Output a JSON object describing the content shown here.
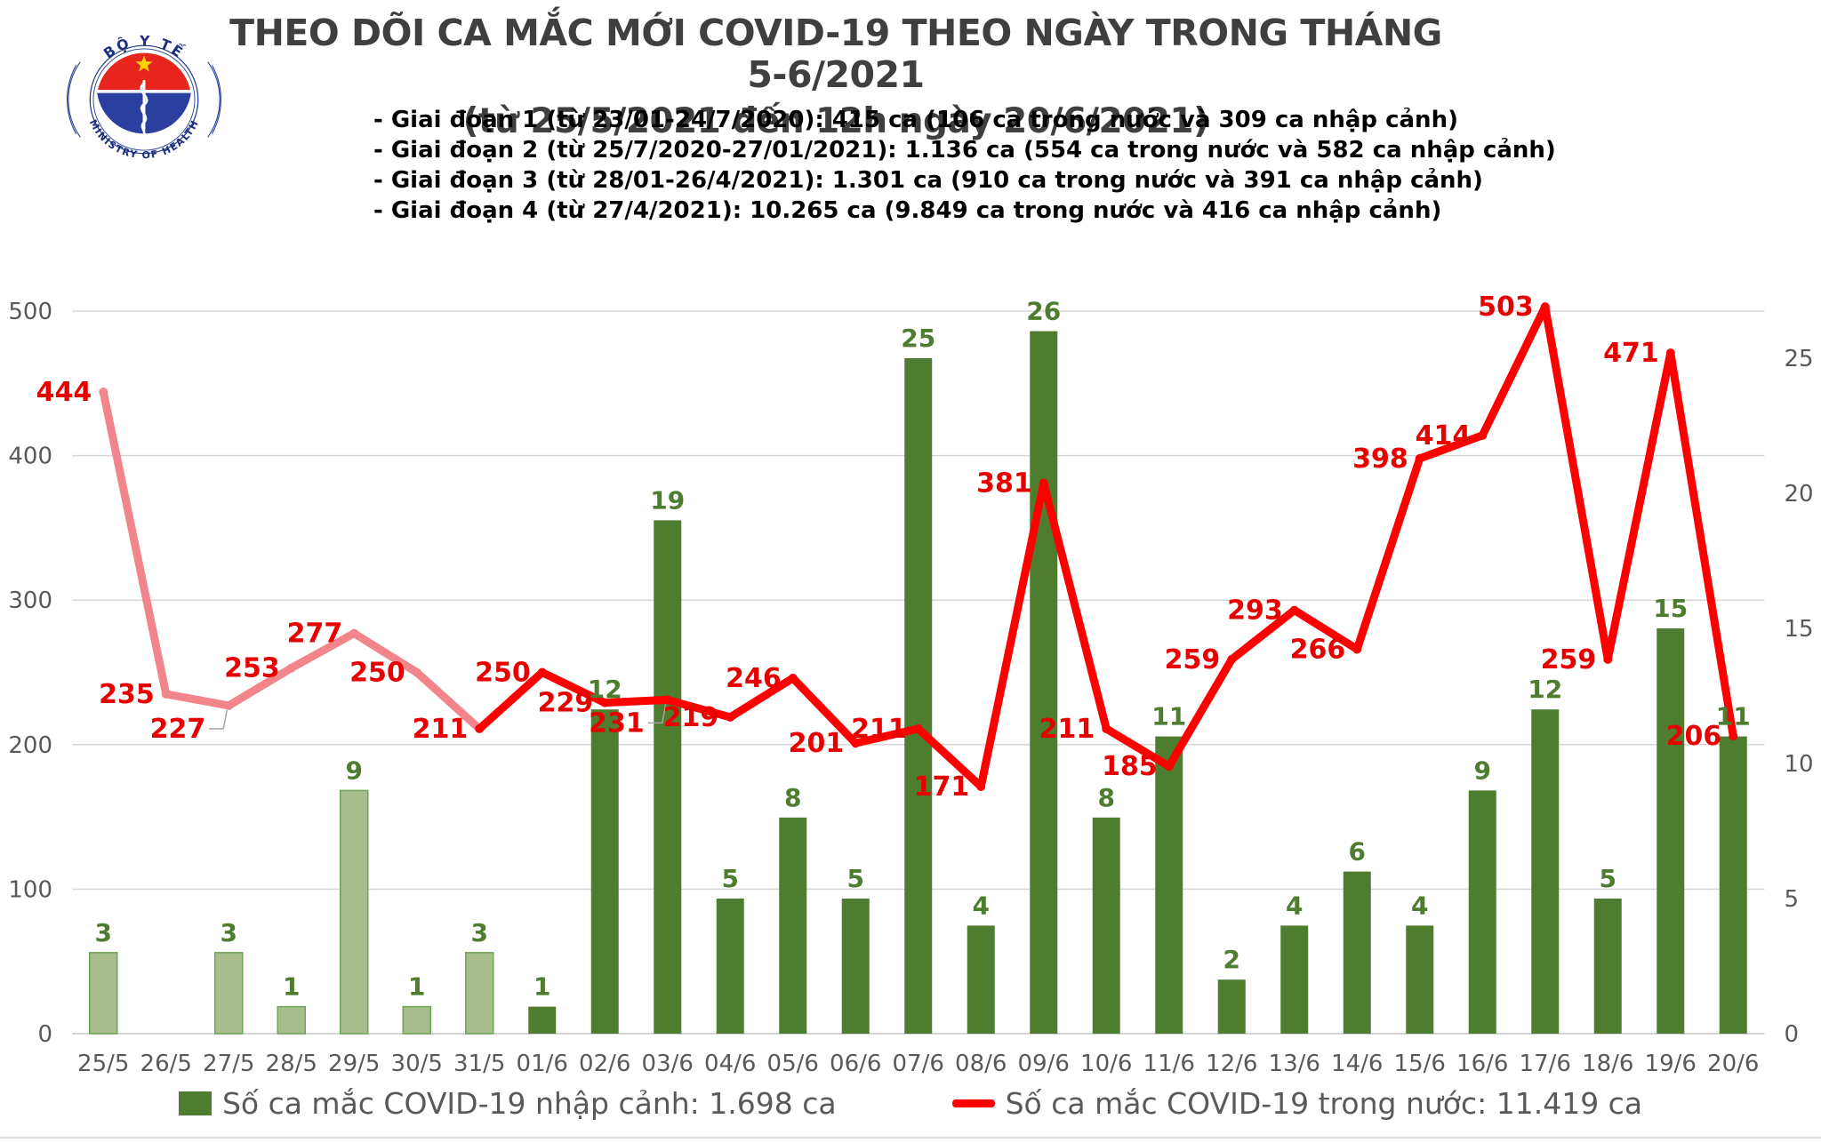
{
  "header": {
    "title_line1": "THEO DÕI CA MẮC MỚI COVID-19 THEO NGÀY TRONG THÁNG 5-6/2021",
    "title_line2": "(từ 25/5/2021 đến 12h ngày 20/6/2021)",
    "logo": {
      "top_text": "BỘ Y TẾ",
      "bottom_text": "MINISTRY OF HEALTH"
    },
    "notes": [
      "- Giai đoạn 1 (từ 23/01-24/7/2020): 415 ca (106 ca trong nước và 309 ca nhập cảnh)",
      "- Giai đoạn 2 (từ 25/7/2020-27/01/2021): 1.136 ca (554 ca trong nước và 582 ca nhập cảnh)",
      "- Giai đoạn 3 (từ 28/01-26/4/2021): 1.301 ca (910 ca trong nước và 391 ca nhập cảnh)",
      "- Giai đoạn 4 (từ 27/4/2021): 10.265 ca (9.849 ca trong nước và 416 ca nhập cảnh)"
    ]
  },
  "chart_data": {
    "type": "bar+line",
    "categories": [
      "25/5",
      "26/5",
      "27/5",
      "28/5",
      "29/5",
      "30/5",
      "31/5",
      "01/6",
      "02/6",
      "03/6",
      "04/6",
      "05/6",
      "06/6",
      "07/6",
      "08/6",
      "09/6",
      "10/6",
      "11/6",
      "12/6",
      "13/6",
      "14/6",
      "15/6",
      "16/6",
      "17/6",
      "18/6",
      "19/6",
      "20/6"
    ],
    "series": [
      {
        "name": "Số ca mắc COVID-19 nhập cảnh",
        "type": "bar",
        "axis": "right",
        "values": [
          3,
          0,
          3,
          1,
          9,
          1,
          3,
          1,
          12,
          19,
          5,
          8,
          5,
          25,
          4,
          26,
          8,
          11,
          2,
          4,
          6,
          4,
          9,
          12,
          5,
          15,
          11
        ],
        "fill": "#4e7d30",
        "early_fill": "#a7bd8b",
        "early_stroke": "#6fa557",
        "early_through_index": 6,
        "label_color": "#4e7d30"
      },
      {
        "name": "Số ca mắc COVID-19 trong nước",
        "type": "line",
        "axis": "left",
        "values": [
          444,
          235,
          227,
          253,
          277,
          250,
          211,
          250,
          229,
          231,
          219,
          246,
          201,
          211,
          171,
          381,
          211,
          185,
          259,
          293,
          266,
          398,
          414,
          503,
          259,
          471,
          206
        ],
        "color": "#fe0000",
        "early_color": "#f2858b",
        "early_through_index": 6,
        "label_color": "#e60000",
        "leader_indexes": [
          2,
          9
        ],
        "label_position": "left"
      }
    ],
    "left_axis": {
      "ticks": [
        0,
        100,
        200,
        300,
        400,
        500
      ],
      "range": [
        0,
        550
      ]
    },
    "right_axis": {
      "ticks": [
        0,
        5,
        10,
        15,
        20,
        25
      ],
      "range": [
        0,
        27.5
      ]
    },
    "grid": true,
    "grid_color": "#d6d6d6",
    "axis_text_color": "#595959",
    "legend_position": "bottom"
  },
  "legend": {
    "bar_label": "Số ca mắc COVID-19 nhập cảnh: 1.698 ca",
    "line_label": "Số ca mắc COVID-19 trong nước: 11.419 ca"
  }
}
